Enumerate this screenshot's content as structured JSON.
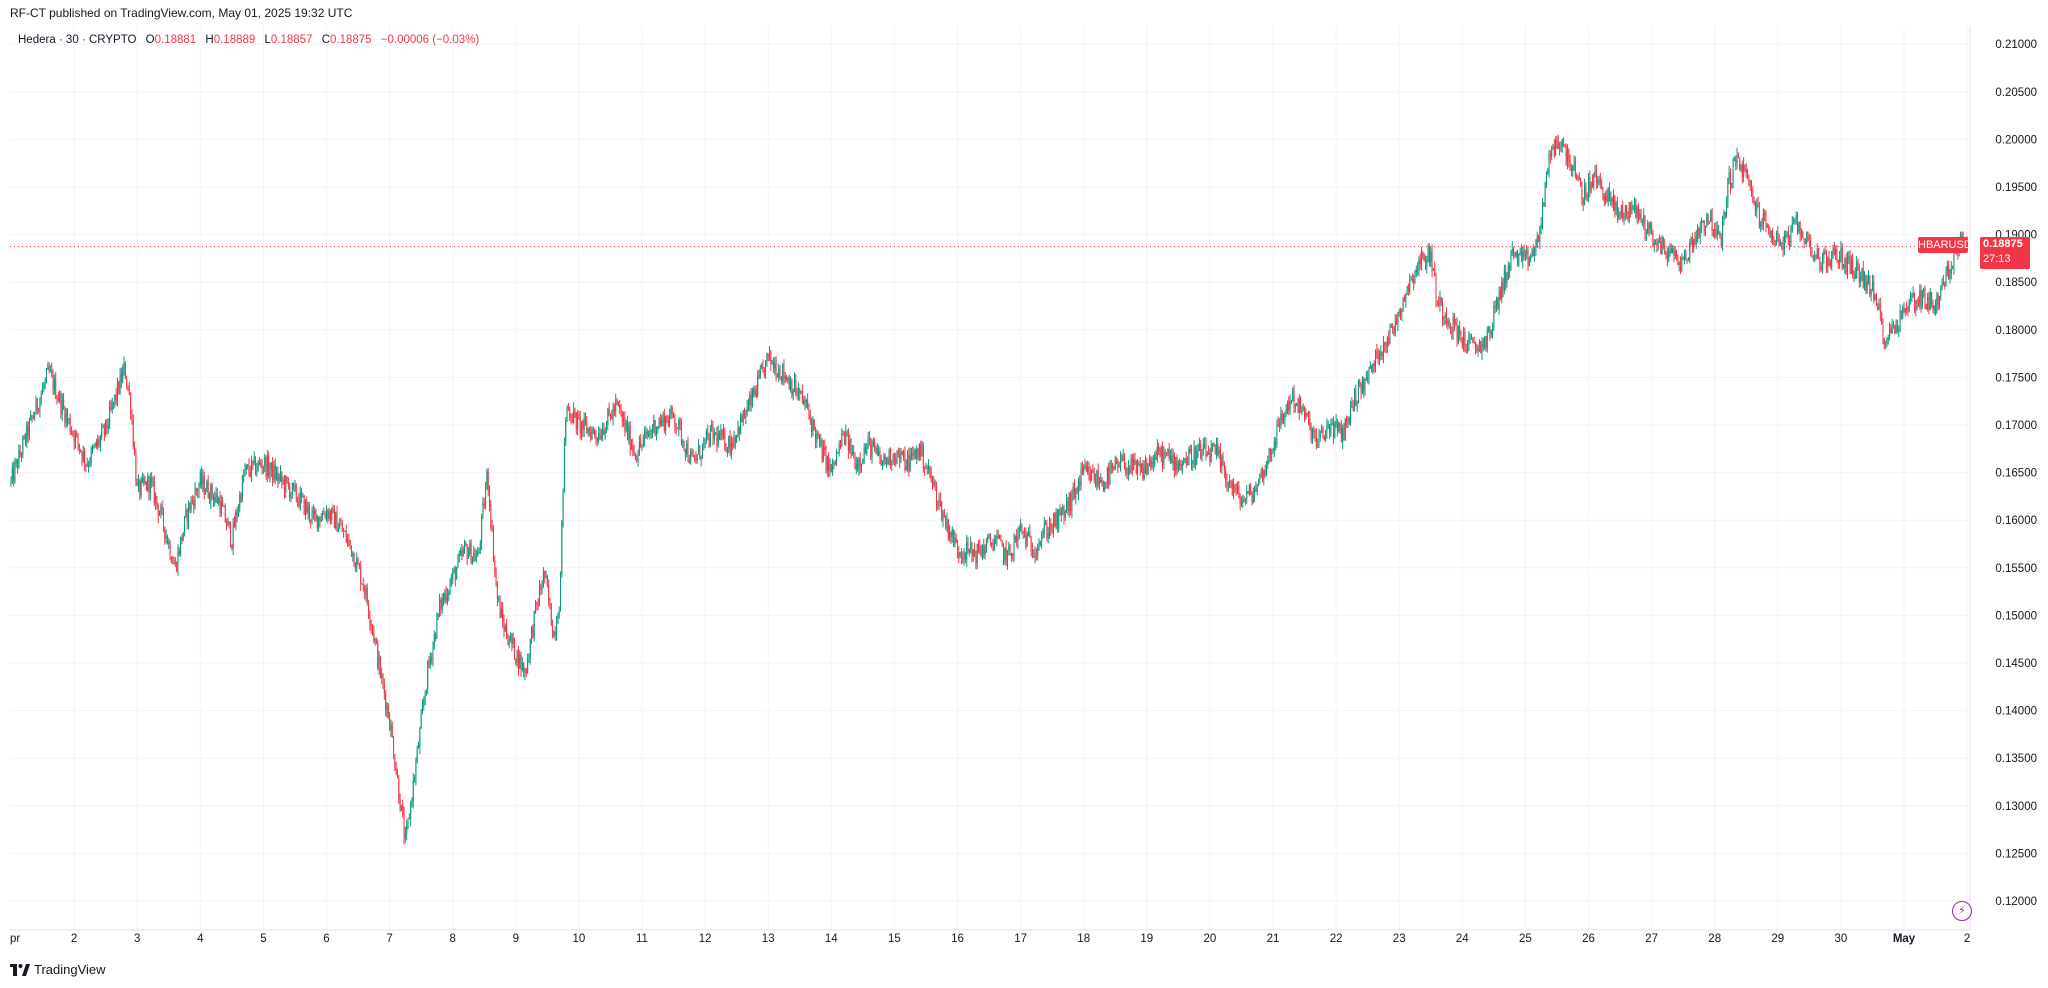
{
  "header": {
    "published_text": "RF-CT published on TradingView.com, May 01, 2025 19:32 UTC"
  },
  "legend": {
    "symbol_text": "Hedera · 30 · CRYPTO",
    "open_label": "O",
    "open_value": "0.18881",
    "high_label": "H",
    "high_value": "0.18889",
    "low_label": "L",
    "low_value": "0.18857",
    "close_label": "C",
    "close_value": "0.18875",
    "change_text": "−0.00006 (−0.03%)"
  },
  "last_price": {
    "symbol": "HBARUSD",
    "price": "0.18875",
    "countdown": "27:13"
  },
  "footer": {
    "brand": "TradingView"
  },
  "colors": {
    "up": "#089981",
    "down": "#f23645",
    "grid": "#f0f3fa",
    "text": "#131722",
    "alert": "#9c27b0"
  },
  "icons": {
    "alert": "lightning-icon",
    "brand": "tradingview-logo-icon"
  },
  "chart_data": {
    "type": "candlestick",
    "symbol": "HBARUSD",
    "interval": "30",
    "y_ticks": [
      "0.12000",
      "0.12500",
      "0.13000",
      "0.13500",
      "0.14000",
      "0.14500",
      "0.15000",
      "0.15500",
      "0.16000",
      "0.16500",
      "0.17000",
      "0.17500",
      "0.18000",
      "0.18500",
      "0.19000",
      "0.19500",
      "0.20000",
      "0.20500",
      "0.21000"
    ],
    "ylim": [
      0.1175,
      0.2125
    ],
    "x_ticks": [
      "pr",
      "2",
      "3",
      "4",
      "5",
      "6",
      "7",
      "8",
      "9",
      "10",
      "11",
      "12",
      "13",
      "14",
      "15",
      "16",
      "17",
      "18",
      "19",
      "20",
      "21",
      "22",
      "23",
      "24",
      "25",
      "26",
      "27",
      "28",
      "29",
      "30",
      "May",
      "2"
    ],
    "x_tick_days": [
      1,
      2,
      3,
      4,
      5,
      6,
      7,
      8,
      9,
      10,
      11,
      12,
      13,
      14,
      15,
      16,
      17,
      18,
      19,
      20,
      21,
      22,
      23,
      24,
      25,
      26,
      27,
      28,
      29,
      30,
      31,
      32
    ],
    "last_price": 0.18875,
    "price_path": [
      [
        1.0,
        0.164
      ],
      [
        1.3,
        0.17
      ],
      [
        1.6,
        0.1755
      ],
      [
        1.9,
        0.1705
      ],
      [
        2.2,
        0.166
      ],
      [
        2.5,
        0.1695
      ],
      [
        2.8,
        0.176
      ],
      [
        2.9,
        0.172
      ],
      [
        3.0,
        0.163
      ],
      [
        3.2,
        0.164
      ],
      [
        3.4,
        0.16
      ],
      [
        3.6,
        0.155
      ],
      [
        3.8,
        0.161
      ],
      [
        4.0,
        0.164
      ],
      [
        4.3,
        0.162
      ],
      [
        4.5,
        0.158
      ],
      [
        4.7,
        0.165
      ],
      [
        5.0,
        0.166
      ],
      [
        5.3,
        0.164
      ],
      [
        5.6,
        0.162
      ],
      [
        5.8,
        0.16
      ],
      [
        6.0,
        0.161
      ],
      [
        6.2,
        0.1595
      ],
      [
        6.4,
        0.157
      ],
      [
        6.6,
        0.153
      ],
      [
        6.75,
        0.148
      ],
      [
        6.85,
        0.144
      ],
      [
        7.0,
        0.139
      ],
      [
        7.1,
        0.134
      ],
      [
        7.25,
        0.126
      ],
      [
        7.45,
        0.136
      ],
      [
        7.6,
        0.144
      ],
      [
        7.8,
        0.151
      ],
      [
        8.0,
        0.154
      ],
      [
        8.2,
        0.157
      ],
      [
        8.4,
        0.156
      ],
      [
        8.55,
        0.165
      ],
      [
        8.7,
        0.152
      ],
      [
        8.8,
        0.149
      ],
      [
        9.0,
        0.146
      ],
      [
        9.15,
        0.144
      ],
      [
        9.3,
        0.15
      ],
      [
        9.45,
        0.1545
      ],
      [
        9.6,
        0.148
      ],
      [
        9.7,
        0.152
      ],
      [
        9.75,
        0.164
      ],
      [
        9.8,
        0.172
      ],
      [
        10.0,
        0.17
      ],
      [
        10.3,
        0.169
      ],
      [
        10.6,
        0.172
      ],
      [
        10.9,
        0.167
      ],
      [
        11.2,
        0.17
      ],
      [
        11.5,
        0.171
      ],
      [
        11.8,
        0.166
      ],
      [
        12.1,
        0.169
      ],
      [
        12.4,
        0.168
      ],
      [
        12.7,
        0.172
      ],
      [
        13.0,
        0.177
      ],
      [
        13.3,
        0.175
      ],
      [
        13.6,
        0.172
      ],
      [
        13.8,
        0.168
      ],
      [
        14.0,
        0.165
      ],
      [
        14.2,
        0.169
      ],
      [
        14.4,
        0.166
      ],
      [
        14.6,
        0.168
      ],
      [
        14.8,
        0.166
      ],
      [
        15.0,
        0.167
      ],
      [
        15.2,
        0.166
      ],
      [
        15.4,
        0.1675
      ],
      [
        15.6,
        0.164
      ],
      [
        15.8,
        0.16
      ],
      [
        16.0,
        0.157
      ],
      [
        16.3,
        0.1565
      ],
      [
        16.6,
        0.158
      ],
      [
        16.8,
        0.156
      ],
      [
        17.0,
        0.159
      ],
      [
        17.2,
        0.157
      ],
      [
        17.4,
        0.159
      ],
      [
        17.6,
        0.16
      ],
      [
        17.8,
        0.162
      ],
      [
        18.0,
        0.165
      ],
      [
        18.3,
        0.164
      ],
      [
        18.6,
        0.166
      ],
      [
        18.9,
        0.165
      ],
      [
        19.2,
        0.167
      ],
      [
        19.5,
        0.166
      ],
      [
        19.8,
        0.167
      ],
      [
        20.1,
        0.167
      ],
      [
        20.3,
        0.164
      ],
      [
        20.5,
        0.162
      ],
      [
        20.7,
        0.163
      ],
      [
        20.9,
        0.166
      ],
      [
        21.1,
        0.17
      ],
      [
        21.3,
        0.173
      ],
      [
        21.5,
        0.171
      ],
      [
        21.7,
        0.168
      ],
      [
        21.9,
        0.17
      ],
      [
        22.1,
        0.169
      ],
      [
        22.3,
        0.173
      ],
      [
        22.5,
        0.175
      ],
      [
        22.7,
        0.178
      ],
      [
        22.9,
        0.18
      ],
      [
        23.1,
        0.184
      ],
      [
        23.3,
        0.187
      ],
      [
        23.5,
        0.188
      ],
      [
        23.6,
        0.183
      ],
      [
        23.8,
        0.181
      ],
      [
        24.0,
        0.179
      ],
      [
        24.2,
        0.178
      ],
      [
        24.4,
        0.179
      ],
      [
        24.6,
        0.184
      ],
      [
        24.8,
        0.188
      ],
      [
        25.0,
        0.187
      ],
      [
        25.2,
        0.189
      ],
      [
        25.35,
        0.197
      ],
      [
        25.5,
        0.2
      ],
      [
        25.7,
        0.198
      ],
      [
        25.9,
        0.194
      ],
      [
        26.1,
        0.196
      ],
      [
        26.3,
        0.194
      ],
      [
        26.5,
        0.192
      ],
      [
        26.7,
        0.193
      ],
      [
        26.9,
        0.191
      ],
      [
        27.1,
        0.189
      ],
      [
        27.3,
        0.188
      ],
      [
        27.5,
        0.187
      ],
      [
        27.7,
        0.19
      ],
      [
        27.9,
        0.192
      ],
      [
        28.1,
        0.189
      ],
      [
        28.2,
        0.195
      ],
      [
        28.35,
        0.198
      ],
      [
        28.5,
        0.196
      ],
      [
        28.7,
        0.192
      ],
      [
        28.9,
        0.19
      ],
      [
        29.1,
        0.189
      ],
      [
        29.3,
        0.191
      ],
      [
        29.5,
        0.189
      ],
      [
        29.7,
        0.187
      ],
      [
        29.9,
        0.188
      ],
      [
        30.1,
        0.187
      ],
      [
        30.3,
        0.186
      ],
      [
        30.5,
        0.184
      ],
      [
        30.6,
        0.182
      ],
      [
        30.7,
        0.179
      ],
      [
        30.9,
        0.181
      ],
      [
        31.1,
        0.183
      ],
      [
        31.3,
        0.1835
      ],
      [
        31.5,
        0.1825
      ],
      [
        31.7,
        0.186
      ],
      [
        31.9,
        0.19
      ],
      [
        32.0,
        0.189
      ]
    ]
  }
}
